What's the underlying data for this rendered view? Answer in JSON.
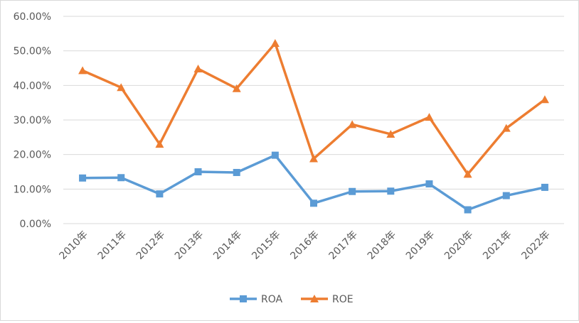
{
  "chart_data": {
    "type": "line",
    "categories": [
      "2010年",
      "2011年",
      "2012年",
      "2013年",
      "2014年",
      "2015年",
      "2016年",
      "2017年",
      "2018年",
      "2019年",
      "2020年",
      "2021年",
      "2022年"
    ],
    "series": [
      {
        "name": "ROA",
        "color": "#5b9bd5",
        "marker": "square",
        "values": [
          13.2,
          13.3,
          8.6,
          15.0,
          14.8,
          19.8,
          5.9,
          9.3,
          9.4,
          11.5,
          4.0,
          8.1,
          10.5
        ]
      },
      {
        "name": "ROE",
        "color": "#ed7d31",
        "marker": "triangle",
        "values": [
          44.3,
          39.4,
          23.0,
          44.8,
          39.1,
          52.2,
          18.8,
          28.7,
          25.9,
          30.8,
          14.3,
          27.6,
          35.9
        ]
      }
    ],
    "yticks": [
      "0.00%",
      "10.00%",
      "20.00%",
      "30.00%",
      "40.00%",
      "50.00%",
      "60.00%"
    ],
    "ylim": [
      0,
      60
    ],
    "title": "",
    "xlabel": "",
    "ylabel": "",
    "grid": true,
    "legend": "bottom"
  }
}
